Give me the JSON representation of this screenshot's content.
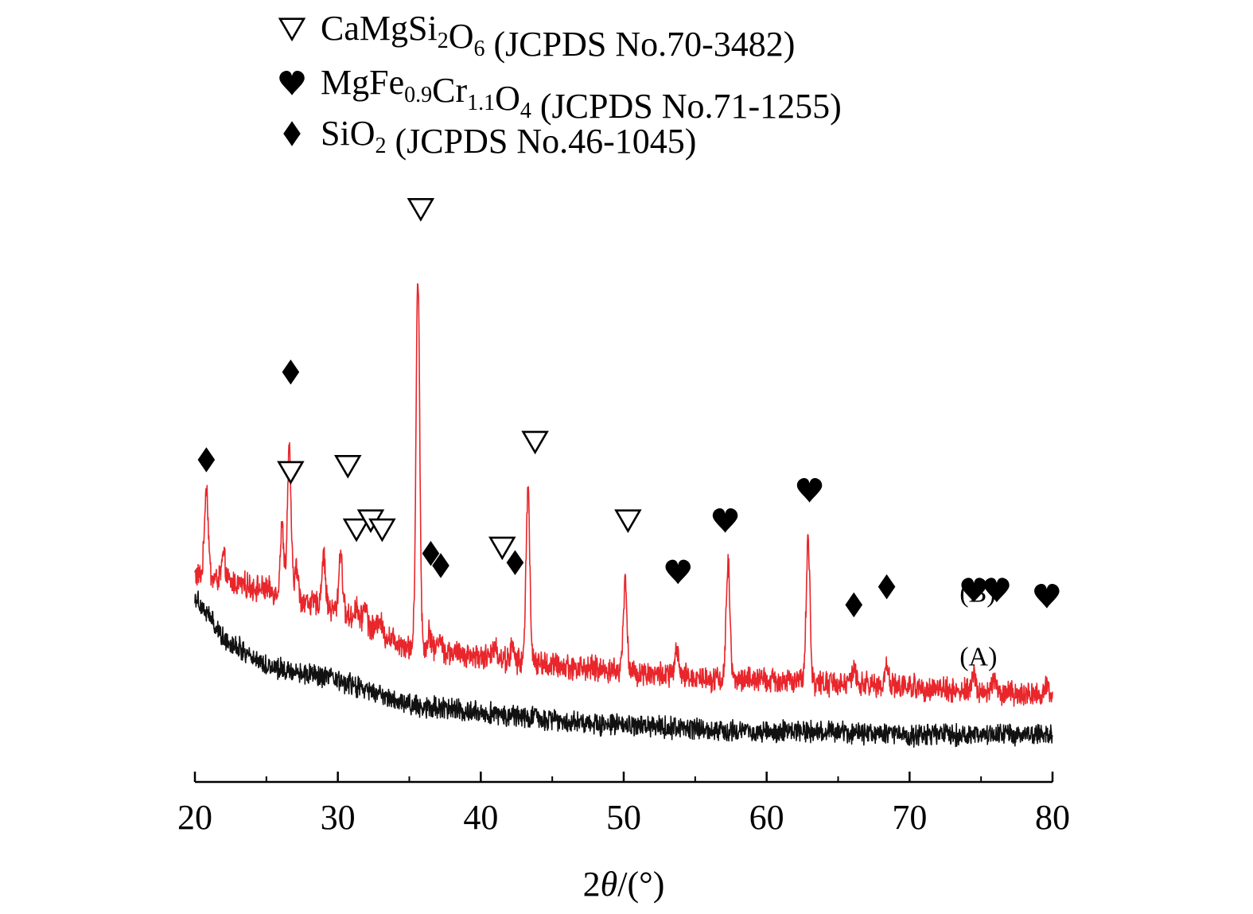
{
  "chart_data": {
    "type": "line",
    "title": "",
    "xlabel": "2θ/(°)",
    "xlabel_parts": {
      "prefix": "2",
      "theta": "θ",
      "suffix": "/(°)"
    },
    "ylabel": "",
    "xlim": [
      20,
      80
    ],
    "xticks": [
      20,
      30,
      40,
      50,
      60,
      70,
      80
    ],
    "y_axis_visible": false,
    "grid": false,
    "legend_placement": "top",
    "legend": [
      {
        "marker": "open-triangle",
        "text": "CaMgSi2O6 (JCPDS No.70-3482)",
        "parts": [
          {
            "t": "CaMgSi"
          },
          {
            "t": "2",
            "sub": true
          },
          {
            "t": "O"
          },
          {
            "t": "6",
            "sub": true
          },
          {
            "t": " (JCPDS No.70-3482)"
          }
        ]
      },
      {
        "marker": "heart",
        "text": "MgFe0.9Cr1.1O4 (JCPDS No.71-1255)",
        "parts": [
          {
            "t": "MgFe"
          },
          {
            "t": "0.9",
            "sub": true
          },
          {
            "t": "Cr"
          },
          {
            "t": "1.1",
            "sub": true
          },
          {
            "t": "O"
          },
          {
            "t": "4",
            "sub": true
          },
          {
            "t": " (JCPDS No.71-1255)"
          }
        ]
      },
      {
        "marker": "diamond",
        "text": "SiO2 (JCPDS No.46-1045)",
        "parts": [
          {
            "t": "SiO"
          },
          {
            "t": "2",
            "sub": true
          },
          {
            "t": " (JCPDS No.46-1045)"
          }
        ]
      }
    ],
    "series": [
      {
        "name": "(B)",
        "color": "#e8262b",
        "baseline": [
          [
            20,
            0.52
          ],
          [
            25,
            0.47
          ],
          [
            30,
            0.4
          ],
          [
            35,
            0.28
          ],
          [
            40,
            0.25
          ],
          [
            45,
            0.22
          ],
          [
            50,
            0.2
          ],
          [
            55,
            0.18
          ],
          [
            60,
            0.17
          ],
          [
            65,
            0.16
          ],
          [
            70,
            0.15
          ],
          [
            75,
            0.13
          ],
          [
            80,
            0.12
          ]
        ],
        "noise": 0.035,
        "peaks": [
          [
            20.8,
            0.3
          ],
          [
            22.0,
            0.08
          ],
          [
            26.1,
            0.22
          ],
          [
            26.6,
            0.48
          ],
          [
            27.1,
            0.1
          ],
          [
            29.0,
            0.17
          ],
          [
            30.2,
            0.2
          ],
          [
            31.3,
            0.05
          ],
          [
            31.9,
            0.07
          ],
          [
            32.9,
            0.05
          ],
          [
            35.6,
            1.23
          ],
          [
            36.4,
            0.06
          ],
          [
            37.1,
            0.05
          ],
          [
            41.0,
            0.05
          ],
          [
            42.2,
            0.04
          ],
          [
            43.3,
            0.58
          ],
          [
            50.1,
            0.3
          ],
          [
            53.7,
            0.08
          ],
          [
            57.3,
            0.38
          ],
          [
            62.9,
            0.48
          ],
          [
            66.1,
            0.05
          ],
          [
            68.4,
            0.07
          ],
          [
            74.5,
            0.06
          ],
          [
            75.9,
            0.05
          ],
          [
            79.6,
            0.04
          ]
        ]
      },
      {
        "name": "(A)",
        "color": "#111111",
        "baseline": [
          [
            20,
            0.45
          ],
          [
            22,
            0.31
          ],
          [
            25,
            0.22
          ],
          [
            30,
            0.17
          ],
          [
            35,
            0.09
          ],
          [
            40,
            0.065
          ],
          [
            45,
            0.04
          ],
          [
            50,
            0.02
          ],
          [
            55,
            0.01
          ],
          [
            60,
            0.0
          ],
          [
            65,
            0.0
          ],
          [
            70,
            -0.01
          ],
          [
            75,
            -0.01
          ],
          [
            80,
            -0.01
          ]
        ],
        "noise": 0.03,
        "peaks": []
      }
    ],
    "peak_markers": [
      {
        "x": 20.8,
        "y": 0.9,
        "marker": "diamond"
      },
      {
        "x": 26.7,
        "y": 1.19,
        "marker": "diamond"
      },
      {
        "x": 26.7,
        "y": 0.86,
        "marker": "open-triangle"
      },
      {
        "x": 30.7,
        "y": 0.88,
        "marker": "open-triangle"
      },
      {
        "x": 31.3,
        "y": 0.67,
        "marker": "open-triangle"
      },
      {
        "x": 32.3,
        "y": 0.7,
        "marker": "open-triangle"
      },
      {
        "x": 33.1,
        "y": 0.67,
        "marker": "open-triangle"
      },
      {
        "x": 35.8,
        "y": 1.73,
        "marker": "open-triangle"
      },
      {
        "x": 36.5,
        "y": 0.59,
        "marker": "diamond"
      },
      {
        "x": 37.2,
        "y": 0.55,
        "marker": "diamond"
      },
      {
        "x": 41.5,
        "y": 0.61,
        "marker": "open-triangle"
      },
      {
        "x": 42.4,
        "y": 0.56,
        "marker": "diamond"
      },
      {
        "x": 43.8,
        "y": 0.96,
        "marker": "open-triangle"
      },
      {
        "x": 50.3,
        "y": 0.7,
        "marker": "open-triangle"
      },
      {
        "x": 53.8,
        "y": 0.53,
        "marker": "heart"
      },
      {
        "x": 57.1,
        "y": 0.7,
        "marker": "heart"
      },
      {
        "x": 63.0,
        "y": 0.8,
        "marker": "heart"
      },
      {
        "x": 66.1,
        "y": 0.42,
        "marker": "diamond"
      },
      {
        "x": 68.4,
        "y": 0.48,
        "marker": "diamond"
      },
      {
        "x": 74.5,
        "y": 0.47,
        "marker": "heart"
      },
      {
        "x": 76.1,
        "y": 0.47,
        "marker": "heart"
      },
      {
        "x": 79.6,
        "y": 0.45,
        "marker": "heart"
      }
    ],
    "series_labels": [
      {
        "text": "(B)",
        "x": 73.5,
        "y": 0.43
      },
      {
        "text": "(A)",
        "x": 73.5,
        "y": 0.22
      }
    ]
  }
}
